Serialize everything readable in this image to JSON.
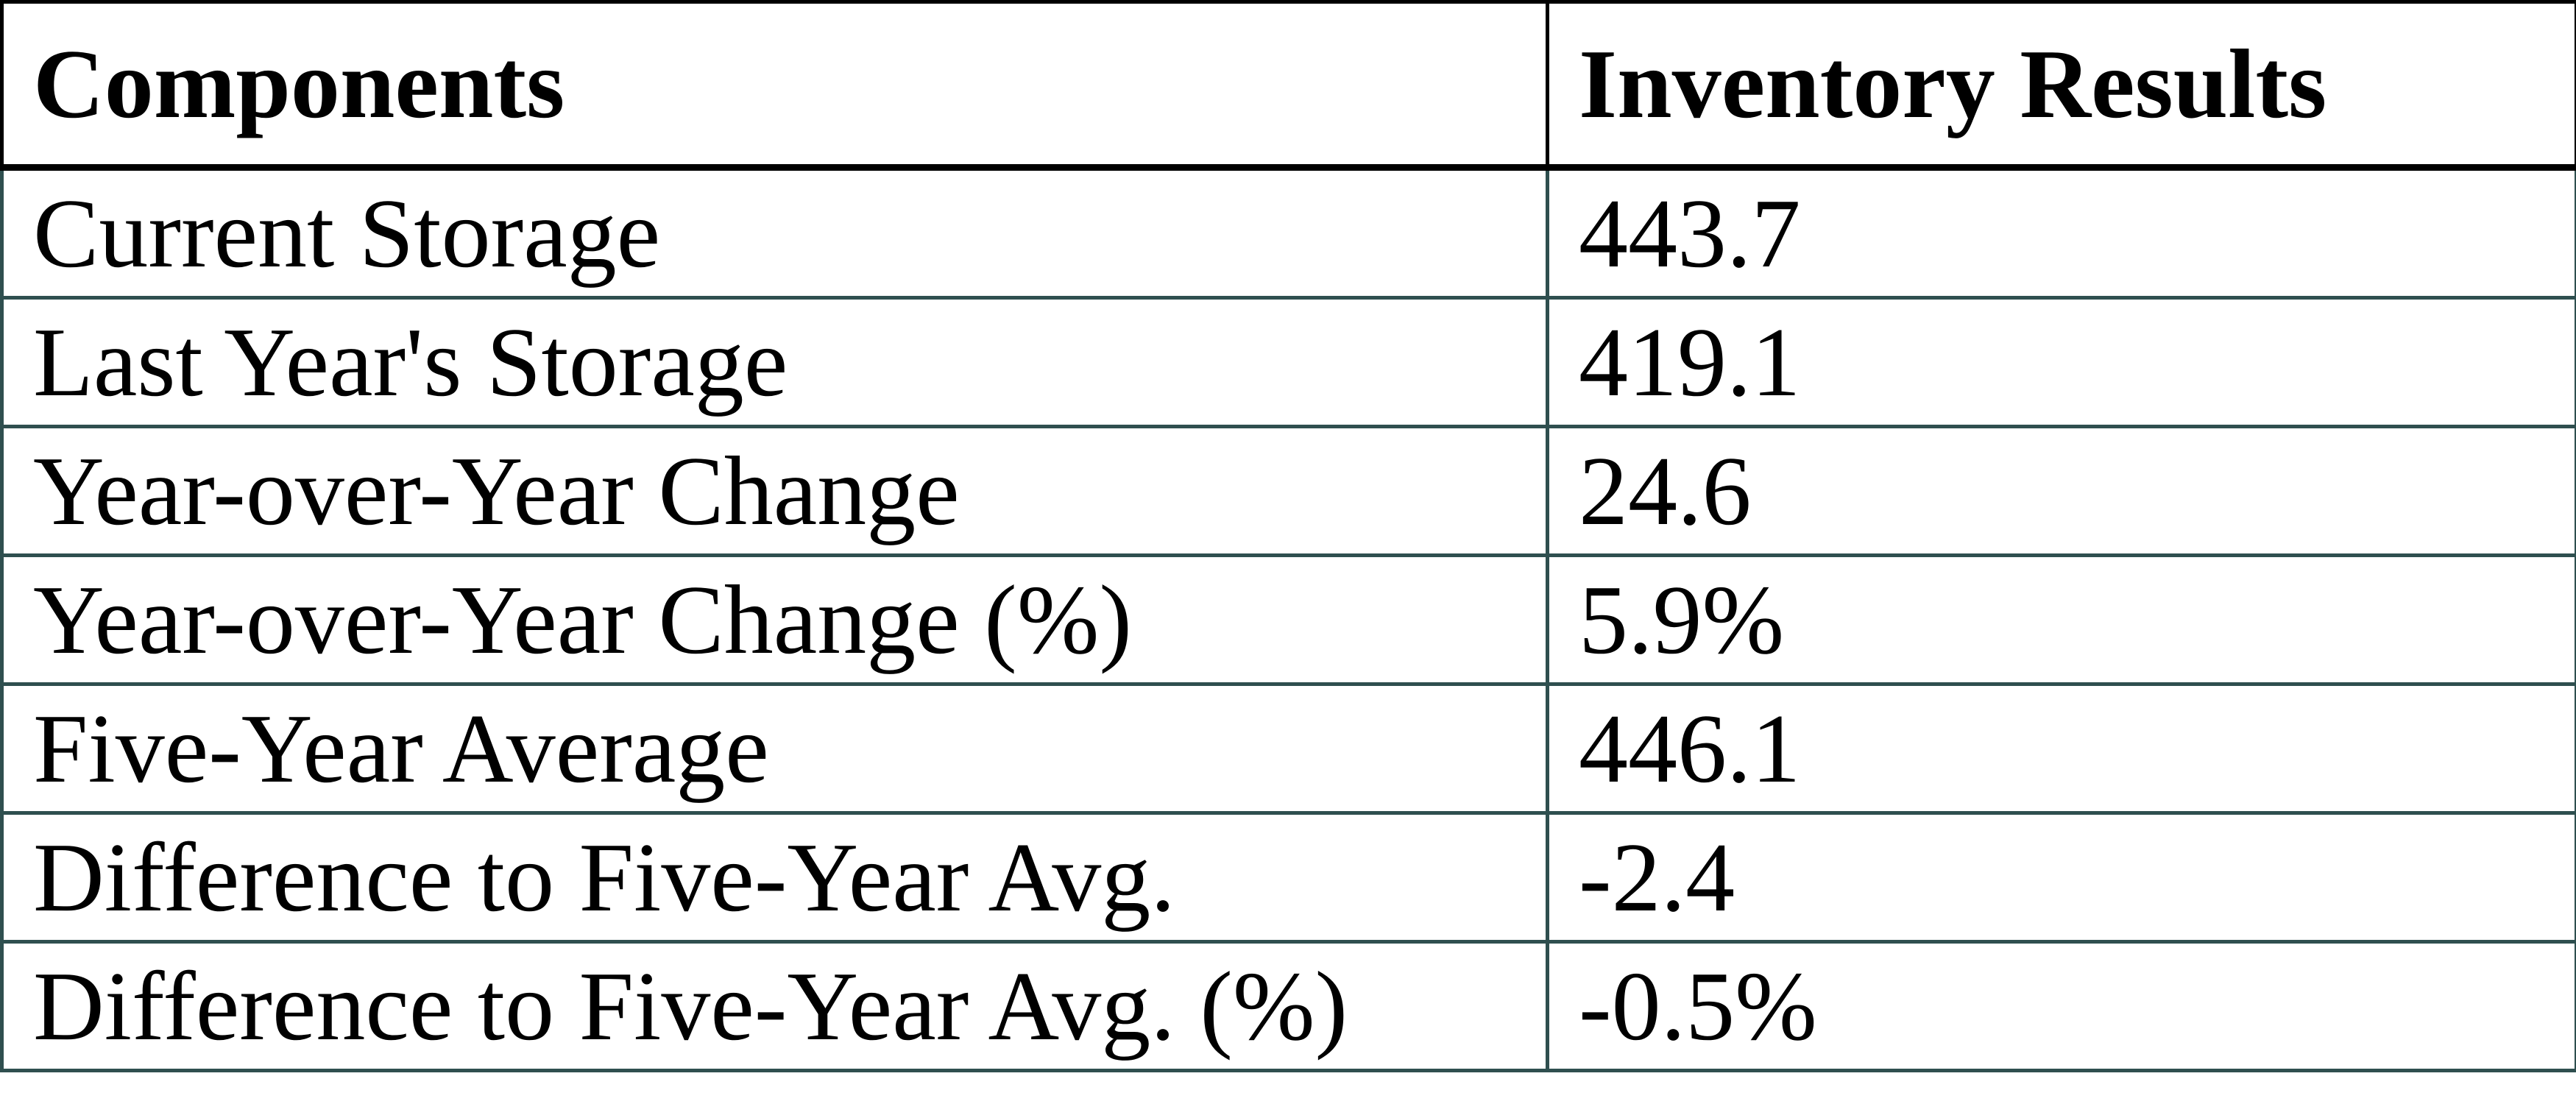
{
  "chart_data": {
    "type": "table",
    "title": "",
    "columns": [
      "Components",
      "Inventory Results"
    ],
    "rows": [
      [
        "Current Storage",
        "443.7"
      ],
      [
        "Last Year's Storage",
        "419.1"
      ],
      [
        "Year-over-Year Change",
        "24.6"
      ],
      [
        "Year-over-Year Change (%)",
        "5.9%"
      ],
      [
        "Five-Year Average",
        "446.1"
      ],
      [
        "Difference to Five-Year Avg.",
        "-2.4"
      ],
      [
        "Difference to Five-Year Avg. (%)",
        "-0.5%"
      ]
    ]
  },
  "table": {
    "header": {
      "components": "Components",
      "inventory_results": "Inventory Results"
    },
    "rows": [
      {
        "label": "Current Storage",
        "value": "443.7"
      },
      {
        "label": "Last Year's Storage",
        "value": "419.1"
      },
      {
        "label": "Year-over-Year Change",
        "value": "24.6"
      },
      {
        "label": "Year-over-Year Change (%)",
        "value": "5.9%"
      },
      {
        "label": "Five-Year Average",
        "value": "446.1"
      },
      {
        "label": "Difference to Five-Year Avg.",
        "value": "-2.4"
      },
      {
        "label": "Difference to Five-Year Avg. (%)",
        "value": "-0.5%"
      }
    ]
  },
  "colors": {
    "header_border": "#000000",
    "body_border": "#2F4F4F",
    "text": "#000000",
    "background": "#FFFFFF"
  }
}
